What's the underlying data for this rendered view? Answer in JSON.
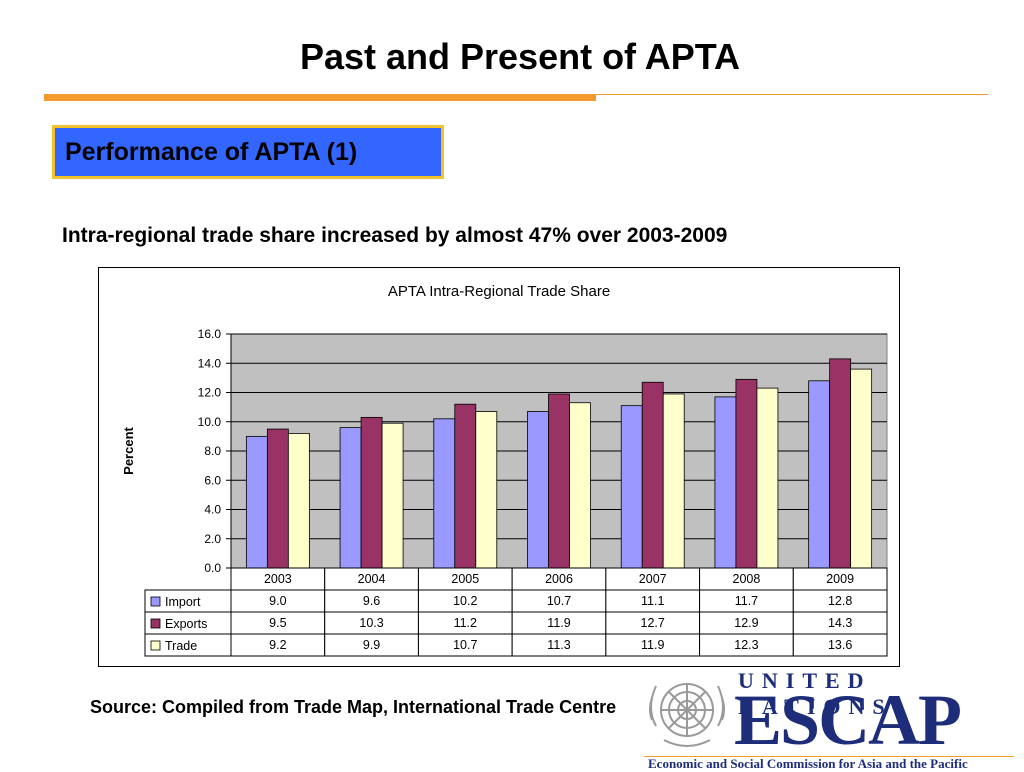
{
  "slide": {
    "title": "Past and Present of APTA",
    "section_label": "Performance of APTA (1)",
    "subtitle": "Intra-regional trade share increased by almost 47% over 2003-2009",
    "source": "Source: Compiled from Trade Map, International Trade Centre"
  },
  "logo": {
    "line1": "UNITED NATIONS",
    "line2": "ESCAP",
    "tagline": "Economic and Social Commission for Asia and the Pacific"
  },
  "colors": {
    "accent_orange": "#f59a2e",
    "section_blue": "#3366ff",
    "section_border": "#f2c22c",
    "plot_bg": "#c0c0c0",
    "import": "#9999ff",
    "exports": "#993366",
    "trade": "#ffffcc",
    "logo_blue": "#1d2d7a"
  },
  "chart_data": {
    "type": "bar",
    "title": "APTA Intra-Regional Trade Share",
    "xlabel": "",
    "ylabel": "Percent",
    "ylim": [
      0,
      16
    ],
    "yticks": [
      "0.0",
      "2.0",
      "4.0",
      "6.0",
      "8.0",
      "10.0",
      "12.0",
      "14.0",
      "16.0"
    ],
    "grid": true,
    "legend": "data-table",
    "categories": [
      "2003",
      "2004",
      "2005",
      "2006",
      "2007",
      "2008",
      "2009"
    ],
    "series": [
      {
        "name": "Import",
        "color": "#9999ff",
        "values": [
          9.0,
          9.6,
          10.2,
          10.7,
          11.1,
          11.7,
          12.8
        ],
        "labels": [
          "9.0",
          "9.6",
          "10.2",
          "10.7",
          "11.1",
          "11.7",
          "12.8"
        ]
      },
      {
        "name": "Exports",
        "color": "#993366",
        "values": [
          9.5,
          10.3,
          11.2,
          11.9,
          12.7,
          12.9,
          14.3
        ],
        "labels": [
          "9.5",
          "10.3",
          "11.2",
          "11.9",
          "12.7",
          "12.9",
          "14.3"
        ]
      },
      {
        "name": "Trade",
        "color": "#ffffcc",
        "values": [
          9.2,
          9.9,
          10.7,
          11.3,
          11.9,
          12.3,
          13.6
        ],
        "labels": [
          "9.2",
          "9.9",
          "10.7",
          "11.3",
          "11.9",
          "12.3",
          "13.6"
        ]
      }
    ]
  }
}
